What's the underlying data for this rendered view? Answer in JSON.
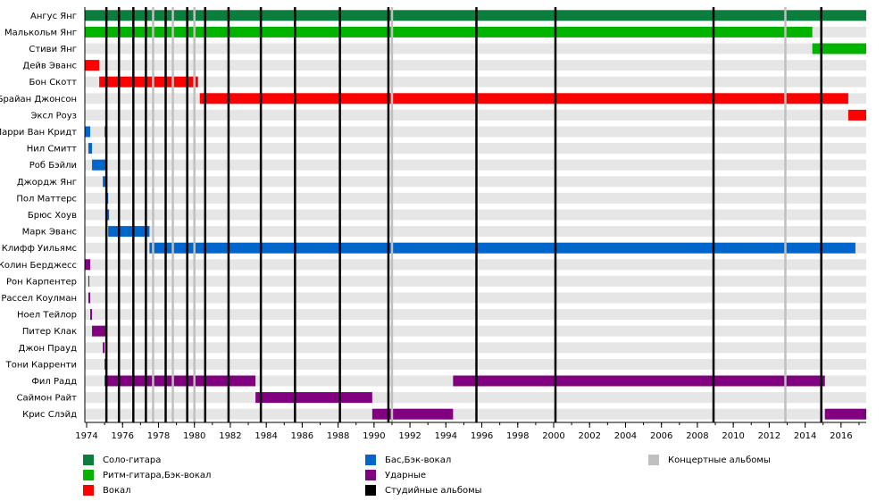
{
  "chart_data": {
    "type": "timeline",
    "title": "",
    "xlabel": "",
    "ylabel": "",
    "xlim": [
      1973.9,
      2017.4
    ],
    "x_ticks": [
      1974,
      1976,
      1978,
      1980,
      1982,
      1984,
      1986,
      1988,
      1990,
      1992,
      1994,
      1996,
      1998,
      2000,
      2002,
      2004,
      2006,
      2008,
      2010,
      2012,
      2014,
      2016
    ],
    "roles": [
      {
        "key": "lead",
        "name": "Соло-гитара",
        "color": "#0b7d3c"
      },
      {
        "key": "rhythm",
        "name": "Ритм-гитара,Бэк-вокал",
        "color": "#00b400"
      },
      {
        "key": "vocal",
        "name": "Вокал",
        "color": "#ff0000"
      },
      {
        "key": "bass",
        "name": "Бас,Бэк-вокал",
        "color": "#0066cc"
      },
      {
        "key": "drums",
        "name": "Ударные",
        "color": "#800080"
      },
      {
        "key": "studio",
        "name": "Студийные альбомы",
        "color": "#000000"
      },
      {
        "key": "live",
        "name": "Концертные альбомы",
        "color": "#c0c0c0"
      }
    ],
    "members": [
      {
        "name": "Ангус Янг",
        "role": "lead",
        "periods": [
          [
            1973.9,
            2017.4
          ]
        ]
      },
      {
        "name": "Малькольм Янг",
        "role": "rhythm",
        "periods": [
          [
            1973.9,
            2014.4
          ]
        ]
      },
      {
        "name": "Стиви Янг",
        "role": "rhythm",
        "periods": [
          [
            2014.4,
            2017.4
          ]
        ]
      },
      {
        "name": "Дейв Эванс",
        "role": "vocal",
        "periods": [
          [
            1973.9,
            1974.7
          ]
        ]
      },
      {
        "name": "Бон Скотт",
        "role": "vocal",
        "periods": [
          [
            1974.7,
            1980.2
          ]
        ]
      },
      {
        "name": "Брайан Джонсон",
        "role": "vocal",
        "periods": [
          [
            1980.3,
            2016.4
          ]
        ]
      },
      {
        "name": "Эксл Роуз",
        "role": "vocal",
        "periods": [
          [
            2016.4,
            2017.4
          ]
        ]
      },
      {
        "name": "Ларри Ван Кридт",
        "role": "bass",
        "periods": [
          [
            1973.9,
            1974.2
          ],
          [
            1975.0,
            1975.1
          ]
        ]
      },
      {
        "name": "Нил Смитт",
        "role": "bass",
        "periods": [
          [
            1974.1,
            1974.3
          ]
        ]
      },
      {
        "name": "Роб Бэйли",
        "role": "bass",
        "periods": [
          [
            1974.3,
            1975.1
          ]
        ]
      },
      {
        "name": "Джордж Янг",
        "role": "bass",
        "periods": [
          [
            1974.9,
            1975.1
          ]
        ]
      },
      {
        "name": "Пол Маттерс",
        "role": "bass",
        "periods": [
          [
            1975.1,
            1975.2
          ]
        ]
      },
      {
        "name": "Брюс Хоув",
        "role": "bass",
        "periods": [
          [
            1975.15,
            1975.25
          ]
        ]
      },
      {
        "name": "Марк Эванс",
        "role": "bass",
        "periods": [
          [
            1975.2,
            1977.5
          ]
        ]
      },
      {
        "name": "Клифф Уильямс",
        "role": "bass",
        "periods": [
          [
            1977.5,
            2016.8
          ]
        ]
      },
      {
        "name": "Колин Берджесс",
        "role": "drums",
        "periods": [
          [
            1973.9,
            1974.2
          ]
        ]
      },
      {
        "name": "Рон Карпентер",
        "role": "drums",
        "periods": [
          [
            1974.1,
            1974.15
          ]
        ]
      },
      {
        "name": "Рассел Коулман",
        "role": "drums",
        "periods": [
          [
            1974.1,
            1974.2
          ]
        ]
      },
      {
        "name": "Ноел Тейлор",
        "role": "drums",
        "periods": [
          [
            1974.2,
            1974.3
          ]
        ]
      },
      {
        "name": "Питер Клак",
        "role": "drums",
        "periods": [
          [
            1974.3,
            1975.1
          ]
        ]
      },
      {
        "name": "Джон Прауд",
        "role": "drums",
        "periods": [
          [
            1974.9,
            1975.0
          ]
        ]
      },
      {
        "name": "Тони Карренти",
        "role": "drums",
        "periods": [
          [
            1975.0,
            1975.05
          ]
        ]
      },
      {
        "name": "Фил Радд",
        "role": "drums",
        "periods": [
          [
            1975.0,
            1983.4
          ],
          [
            1994.4,
            2015.1
          ]
        ]
      },
      {
        "name": "Саймон Райт",
        "role": "drums",
        "periods": [
          [
            1983.4,
            1989.9
          ]
        ]
      },
      {
        "name": "Крис Слэйд",
        "role": "drums",
        "periods": [
          [
            1989.9,
            1994.4
          ],
          [
            2015.1,
            2017.4
          ]
        ]
      }
    ],
    "studio_albums": [
      1975.1,
      1975.8,
      1976.6,
      1977.3,
      1978.4,
      1979.6,
      1980.6,
      1981.9,
      1983.7,
      1985.6,
      1988.1,
      1990.8,
      1995.7,
      2000.1,
      2008.9,
      2014.9
    ],
    "live_albums": [
      1977.7,
      1978.8,
      1980.0,
      1991.0,
      2012.9
    ]
  }
}
